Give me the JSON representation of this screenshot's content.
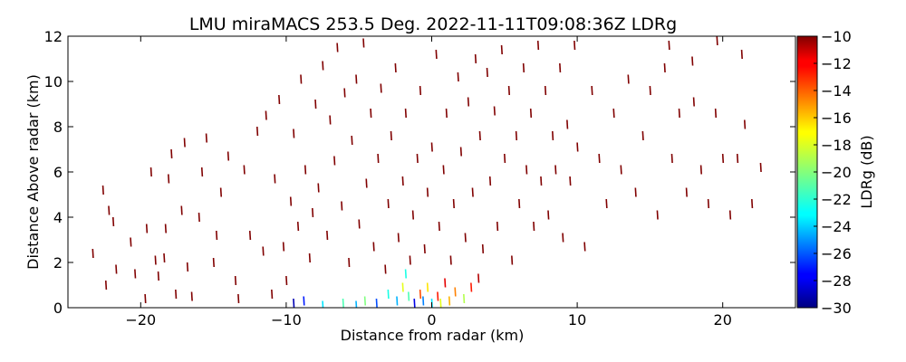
{
  "chart_data": {
    "type": "scatter",
    "title": "LMU miraMACS 253.5 Deg. 2022-11-11T09:08:36Z  LDRg",
    "xlabel": "Distance from radar (km)",
    "ylabel": "Distance Above radar  (km)",
    "xlim": [
      -25,
      25
    ],
    "ylim": [
      0,
      12
    ],
    "xticks": [
      -20,
      -10,
      0,
      10,
      20
    ],
    "xtick_labels": [
      "−20",
      "−10",
      "0",
      "10",
      "20"
    ],
    "yticks": [
      0,
      2,
      4,
      6,
      8,
      10,
      12
    ],
    "ytick_labels": [
      "0",
      "2",
      "4",
      "6",
      "8",
      "10",
      "12"
    ],
    "grid": false,
    "colorbar": {
      "label": "LDRg (dB)",
      "range": [
        -30,
        -10
      ],
      "ticks": [
        -10,
        -12,
        -14,
        -16,
        -18,
        -20,
        -22,
        -24,
        -26,
        -28,
        -30
      ],
      "tick_labels": [
        "−10",
        "−12",
        "−14",
        "−16",
        "−18",
        "−20",
        "−22",
        "−24",
        "−26",
        "−28",
        "−30"
      ],
      "colormap": "jet"
    },
    "series": [
      {
        "points": [
          [
            -23.3,
            2.4,
            -10
          ],
          [
            -22.6,
            5.2,
            -10
          ],
          [
            -22.2,
            4.3,
            -10
          ],
          [
            -21.9,
            3.8,
            -10
          ],
          [
            -21.7,
            1.7,
            -10
          ],
          [
            -22.4,
            1.0,
            -10
          ],
          [
            -20.7,
            2.9,
            -10
          ],
          [
            -20.4,
            1.5,
            -10
          ],
          [
            -19.7,
            0.4,
            -10
          ],
          [
            -19.6,
            3.5,
            -10
          ],
          [
            -19.3,
            6.0,
            -10
          ],
          [
            -19.0,
            2.1,
            -10
          ],
          [
            -18.8,
            1.4,
            -10
          ],
          [
            -18.4,
            2.2,
            -10
          ],
          [
            -18.3,
            3.5,
            -10
          ],
          [
            -18.1,
            5.7,
            -10
          ],
          [
            -17.9,
            6.8,
            -10
          ],
          [
            -17.6,
            0.6,
            -10
          ],
          [
            -17.2,
            4.3,
            -10
          ],
          [
            -17.0,
            7.3,
            -10
          ],
          [
            -16.8,
            1.8,
            -10
          ],
          [
            -16.5,
            0.5,
            -10
          ],
          [
            -16.0,
            4.0,
            -10
          ],
          [
            -15.8,
            6.0,
            -10
          ],
          [
            -15.5,
            7.5,
            -10
          ],
          [
            -15.0,
            2.0,
            -10
          ],
          [
            -14.8,
            3.2,
            -10
          ],
          [
            -14.5,
            5.1,
            -10
          ],
          [
            -14.0,
            6.7,
            -10
          ],
          [
            -13.5,
            1.2,
            -10
          ],
          [
            -13.3,
            0.4,
            -10
          ],
          [
            -12.9,
            6.1,
            -10
          ],
          [
            -12.5,
            3.2,
            -10
          ],
          [
            -12.0,
            7.8,
            -10
          ],
          [
            -11.6,
            2.5,
            -10
          ],
          [
            -11.4,
            8.5,
            -10
          ],
          [
            -11.0,
            0.6,
            -10
          ],
          [
            -10.8,
            5.7,
            -10
          ],
          [
            -10.5,
            9.2,
            -10
          ],
          [
            -10.2,
            2.7,
            -10
          ],
          [
            -10.0,
            1.2,
            -10
          ],
          [
            -9.7,
            4.7,
            -10
          ],
          [
            -9.5,
            7.7,
            -10
          ],
          [
            -9.2,
            3.6,
            -10
          ],
          [
            -9.0,
            10.1,
            -10
          ],
          [
            -8.7,
            6.1,
            -10
          ],
          [
            -8.4,
            2.2,
            -10
          ],
          [
            -8.2,
            4.2,
            -10
          ],
          [
            -8.0,
            9.0,
            -10
          ],
          [
            -7.8,
            5.3,
            -10
          ],
          [
            -7.5,
            10.7,
            -10
          ],
          [
            -7.2,
            3.2,
            -10
          ],
          [
            -7.0,
            8.3,
            -10
          ],
          [
            -6.7,
            6.5,
            -10
          ],
          [
            -6.5,
            11.5,
            -10
          ],
          [
            -6.2,
            4.5,
            -10
          ],
          [
            -6.0,
            9.5,
            -10
          ],
          [
            -5.7,
            2.0,
            -10
          ],
          [
            -5.5,
            7.4,
            -10
          ],
          [
            -5.2,
            10.1,
            -10
          ],
          [
            -5.0,
            3.7,
            -10
          ],
          [
            -4.7,
            11.7,
            -10
          ],
          [
            -4.5,
            5.5,
            -10
          ],
          [
            -4.2,
            8.6,
            -10
          ],
          [
            -4.0,
            2.7,
            -10
          ],
          [
            -3.7,
            6.6,
            -10
          ],
          [
            -3.5,
            9.7,
            -10
          ],
          [
            -3.2,
            1.7,
            -10
          ],
          [
            -3.0,
            4.6,
            -10
          ],
          [
            -2.8,
            7.6,
            -10
          ],
          [
            -2.5,
            10.6,
            -10
          ],
          [
            -2.3,
            3.1,
            -10
          ],
          [
            -2.0,
            5.6,
            -10
          ],
          [
            -1.8,
            8.6,
            -10
          ],
          [
            -1.5,
            2.1,
            -10
          ],
          [
            -1.3,
            4.1,
            -10
          ],
          [
            -1.0,
            6.6,
            -10
          ],
          [
            -0.8,
            9.6,
            -10
          ],
          [
            -0.5,
            2.6,
            -10
          ],
          [
            -0.3,
            5.1,
            -10
          ],
          [
            0.0,
            7.1,
            -10
          ],
          [
            0.3,
            11.2,
            -10
          ],
          [
            0.5,
            3.6,
            -10
          ],
          [
            0.8,
            6.1,
            -10
          ],
          [
            1.0,
            8.6,
            -10
          ],
          [
            1.3,
            2.1,
            -10
          ],
          [
            1.5,
            4.6,
            -10
          ],
          [
            1.8,
            10.2,
            -10
          ],
          [
            2.0,
            6.9,
            -10
          ],
          [
            2.3,
            3.1,
            -10
          ],
          [
            2.5,
            9.1,
            -10
          ],
          [
            2.8,
            5.1,
            -10
          ],
          [
            3.0,
            11.0,
            -10
          ],
          [
            3.3,
            7.6,
            -10
          ],
          [
            3.5,
            2.6,
            -10
          ],
          [
            3.8,
            10.4,
            -10
          ],
          [
            4.0,
            5.6,
            -10
          ],
          [
            4.3,
            8.7,
            -10
          ],
          [
            4.5,
            3.6,
            -10
          ],
          [
            4.8,
            11.4,
            -10
          ],
          [
            5.0,
            6.6,
            -10
          ],
          [
            5.3,
            9.6,
            -10
          ],
          [
            5.5,
            2.1,
            -10
          ],
          [
            5.8,
            7.6,
            -10
          ],
          [
            6.0,
            4.6,
            -10
          ],
          [
            6.3,
            10.6,
            -10
          ],
          [
            6.5,
            6.1,
            -10
          ],
          [
            6.8,
            8.6,
            -10
          ],
          [
            7.0,
            3.6,
            -10
          ],
          [
            7.3,
            11.6,
            -10
          ],
          [
            7.5,
            5.6,
            -10
          ],
          [
            7.8,
            9.6,
            -10
          ],
          [
            8.0,
            4.1,
            -10
          ],
          [
            8.3,
            7.6,
            -10
          ],
          [
            8.5,
            6.1,
            -10
          ],
          [
            8.8,
            10.6,
            -10
          ],
          [
            9.0,
            3.1,
            -10
          ],
          [
            9.3,
            8.1,
            -10
          ],
          [
            9.5,
            5.6,
            -10
          ],
          [
            9.8,
            11.6,
            -10
          ],
          [
            10.0,
            7.1,
            -10
          ],
          [
            10.5,
            2.7,
            -10
          ],
          [
            11.0,
            9.6,
            -10
          ],
          [
            11.5,
            6.6,
            -10
          ],
          [
            12.0,
            4.6,
            -10
          ],
          [
            12.5,
            8.6,
            -10
          ],
          [
            13.0,
            6.1,
            -10
          ],
          [
            13.5,
            10.1,
            -10
          ],
          [
            14.0,
            5.1,
            -10
          ],
          [
            14.5,
            7.6,
            -10
          ],
          [
            15.0,
            9.6,
            -10
          ],
          [
            15.5,
            4.1,
            -10
          ],
          [
            16.0,
            10.6,
            -10
          ],
          [
            16.5,
            6.6,
            -10
          ],
          [
            17.0,
            8.6,
            -10
          ],
          [
            17.5,
            5.1,
            -10
          ],
          [
            18.0,
            9.1,
            -10
          ],
          [
            18.5,
            6.1,
            -10
          ],
          [
            19.0,
            4.6,
            -10
          ],
          [
            19.5,
            8.6,
            -10
          ],
          [
            20.0,
            6.6,
            -10
          ],
          [
            20.5,
            4.1,
            -10
          ],
          [
            21.0,
            6.6,
            -10
          ],
          [
            21.5,
            8.1,
            -10
          ],
          [
            22.0,
            4.6,
            -10
          ],
          [
            22.6,
            6.2,
            -10
          ],
          [
            21.3,
            11.2,
            -10
          ],
          [
            19.6,
            11.8,
            -10
          ],
          [
            17.9,
            10.9,
            -10
          ],
          [
            16.3,
            11.6,
            -10
          ],
          [
            -0.8,
            0.6,
            -14
          ],
          [
            -0.3,
            0.9,
            -17
          ],
          [
            0.4,
            0.5,
            -13
          ],
          [
            0.9,
            1.1,
            -12
          ],
          [
            1.6,
            0.7,
            -15
          ],
          [
            2.2,
            0.4,
            -19
          ],
          [
            -1.6,
            0.5,
            -21
          ],
          [
            -2.4,
            0.3,
            -24
          ],
          [
            -3.0,
            0.6,
            -22
          ],
          [
            -3.8,
            0.2,
            -26
          ],
          [
            -4.6,
            0.3,
            -20
          ],
          [
            -1.2,
            0.2,
            -28
          ],
          [
            -0.6,
            0.3,
            -25
          ],
          [
            0.0,
            0.2,
            -23
          ],
          [
            0.6,
            0.2,
            -18
          ],
          [
            1.2,
            0.3,
            -16
          ],
          [
            -1.8,
            1.5,
            -22
          ],
          [
            2.7,
            0.9,
            -13
          ],
          [
            3.2,
            1.3,
            -11
          ],
          [
            -2.0,
            0.9,
            -18
          ],
          [
            -7.5,
            0.1,
            -23
          ],
          [
            -6.1,
            0.2,
            -21
          ],
          [
            -5.2,
            0.1,
            -24
          ],
          [
            -8.8,
            0.3,
            -27
          ],
          [
            -9.5,
            0.2,
            -29
          ]
        ]
      }
    ]
  }
}
